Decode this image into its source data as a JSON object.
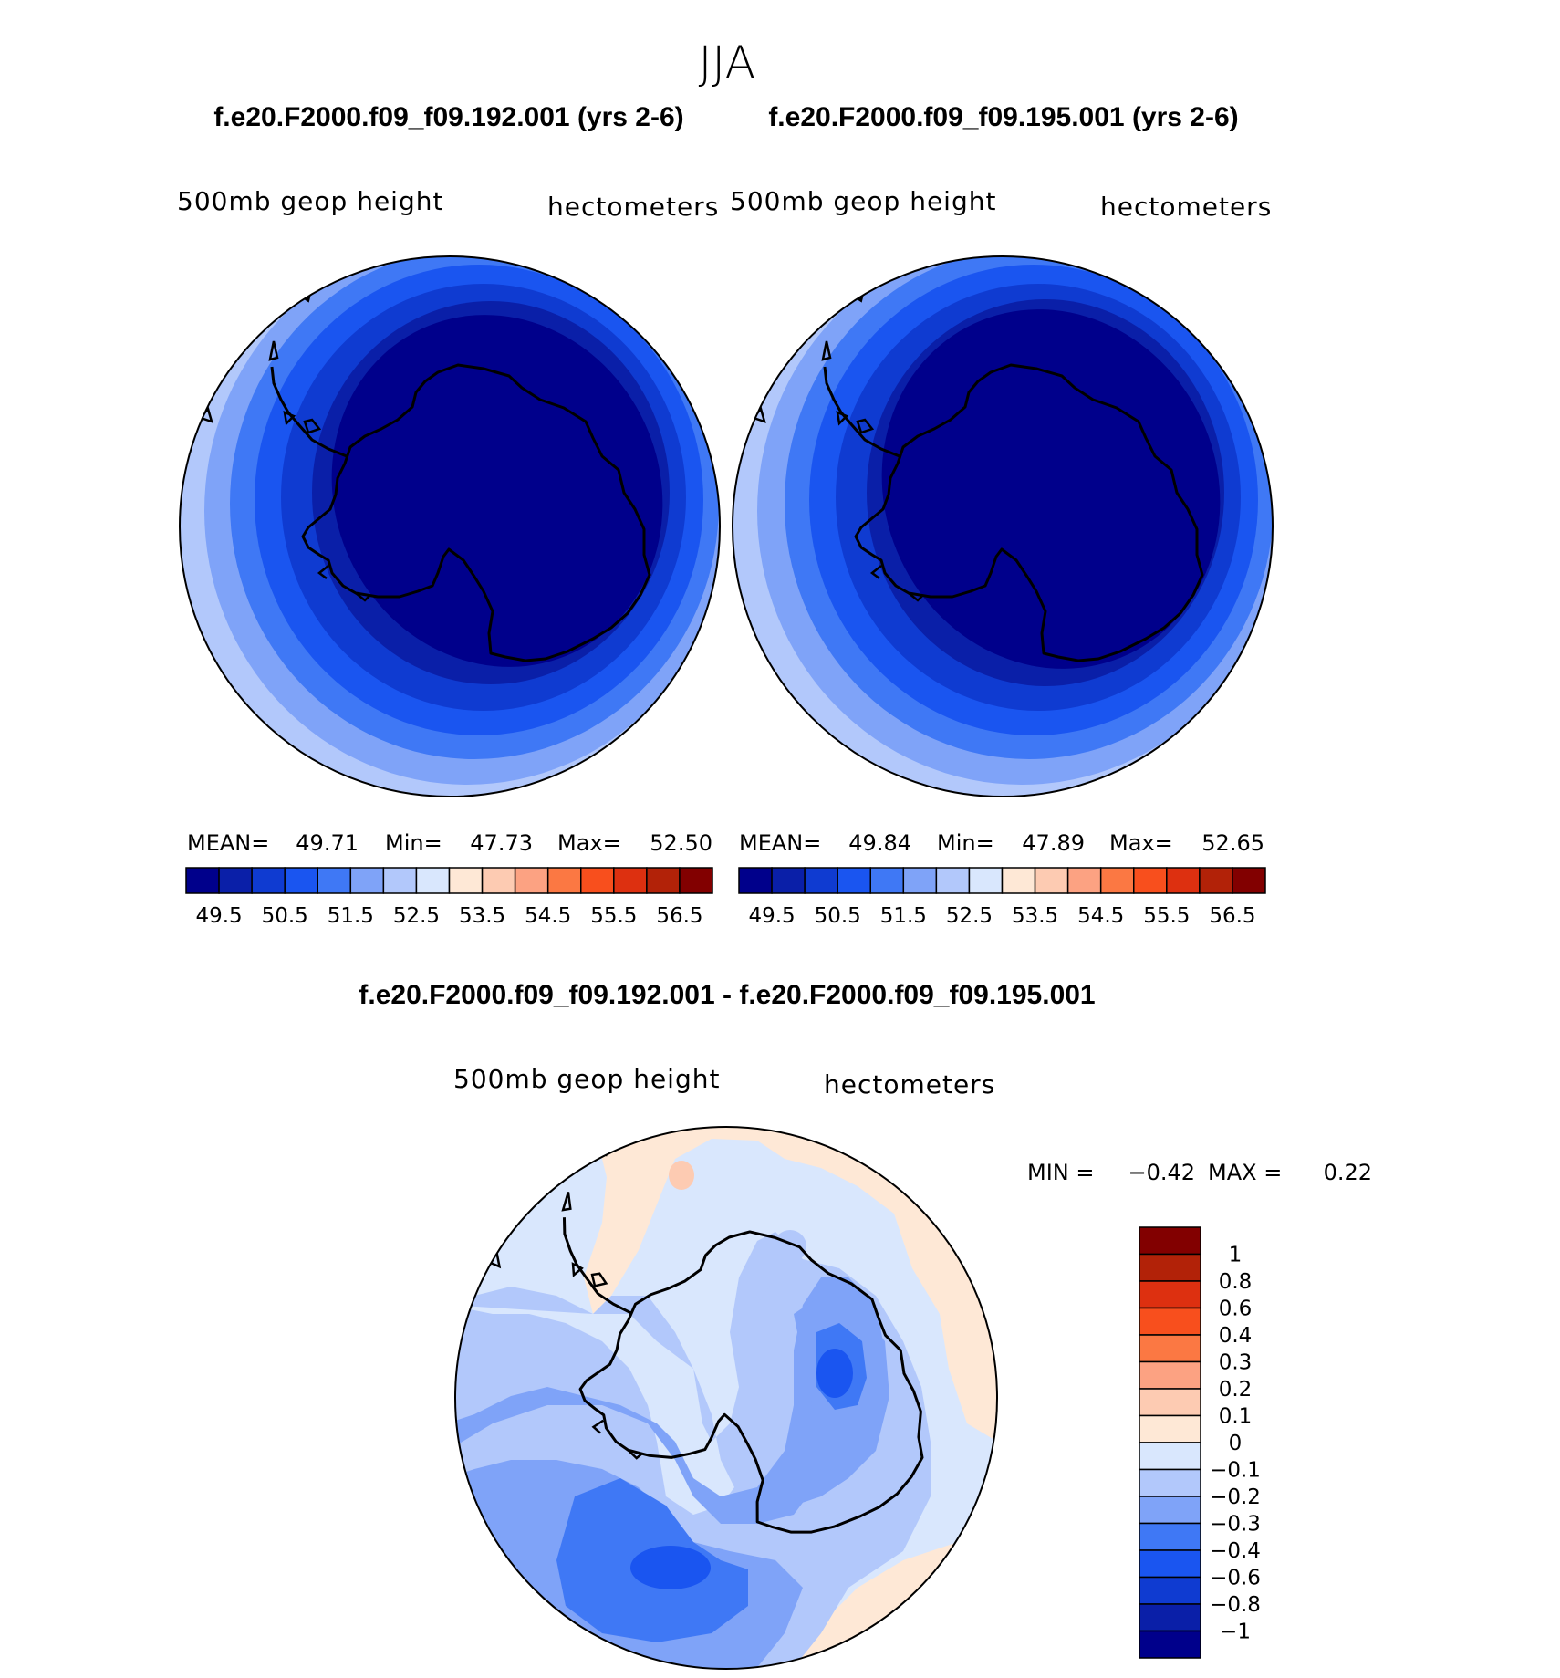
{
  "season": "JJA",
  "panels": [
    {
      "id": "p1",
      "case_title": "f.e20.F2000.f09_f09.192.001 (yrs 2-6)",
      "var_label": "500mb  geop  height",
      "units": "hectometers",
      "stats": {
        "mean_label": "MEAN=",
        "mean": "49.71",
        "min_label": "Min=",
        "min": "47.73",
        "max_label": "Max=",
        "max": "52.50"
      }
    },
    {
      "id": "p2",
      "case_title": "f.e20.F2000.f09_f09.195.001 (yrs 2-6)",
      "var_label": "500mb  geop  height",
      "units": "hectometers",
      "stats": {
        "mean_label": "MEAN=",
        "mean": "49.84",
        "min_label": "Min=",
        "min": "47.89",
        "max_label": "Max=",
        "max": "52.65"
      }
    }
  ],
  "colorbar_h": {
    "colors": [
      "#00008b",
      "#0a1fa8",
      "#0f3bd1",
      "#1a55f0",
      "#3f78f5",
      "#7fa3f8",
      "#b2c8fb",
      "#d9e7fd",
      "#fee8d6",
      "#fdcbb2",
      "#fca282",
      "#fb7843",
      "#f84f1d",
      "#dd3010",
      "#b22208",
      "#820000"
    ],
    "tick_labels": [
      "49.5",
      "50.5",
      "51.5",
      "52.5",
      "53.5",
      "54.5",
      "55.5",
      "56.5"
    ]
  },
  "diff": {
    "title": "f.e20.F2000.f09_f09.192.001 - f.e20.F2000.f09_f09.195.001",
    "var_label": "500mb  geop  height",
    "units": "hectometers",
    "min_label": "MIN =",
    "min": "−0.42",
    "max_label": "MAX =",
    "max": "0.22",
    "colorbar": {
      "colors": [
        "#820000",
        "#b22208",
        "#dd3010",
        "#f84f1d",
        "#fb7843",
        "#fca282",
        "#fdcbb2",
        "#fee8d6",
        "#d9e7fd",
        "#b2c8fb",
        "#7fa3f8",
        "#3f78f5",
        "#1a55f0",
        "#0f3bd1",
        "#0a1fa8",
        "#00008b"
      ],
      "tick_labels": [
        "1",
        "0.8",
        "0.6",
        "0.4",
        "0.3",
        "0.2",
        "0.1",
        "0",
        "−0.1",
        "−0.2",
        "−0.3",
        "−0.4",
        "−0.6",
        "−0.8",
        "−1"
      ]
    }
  }
}
